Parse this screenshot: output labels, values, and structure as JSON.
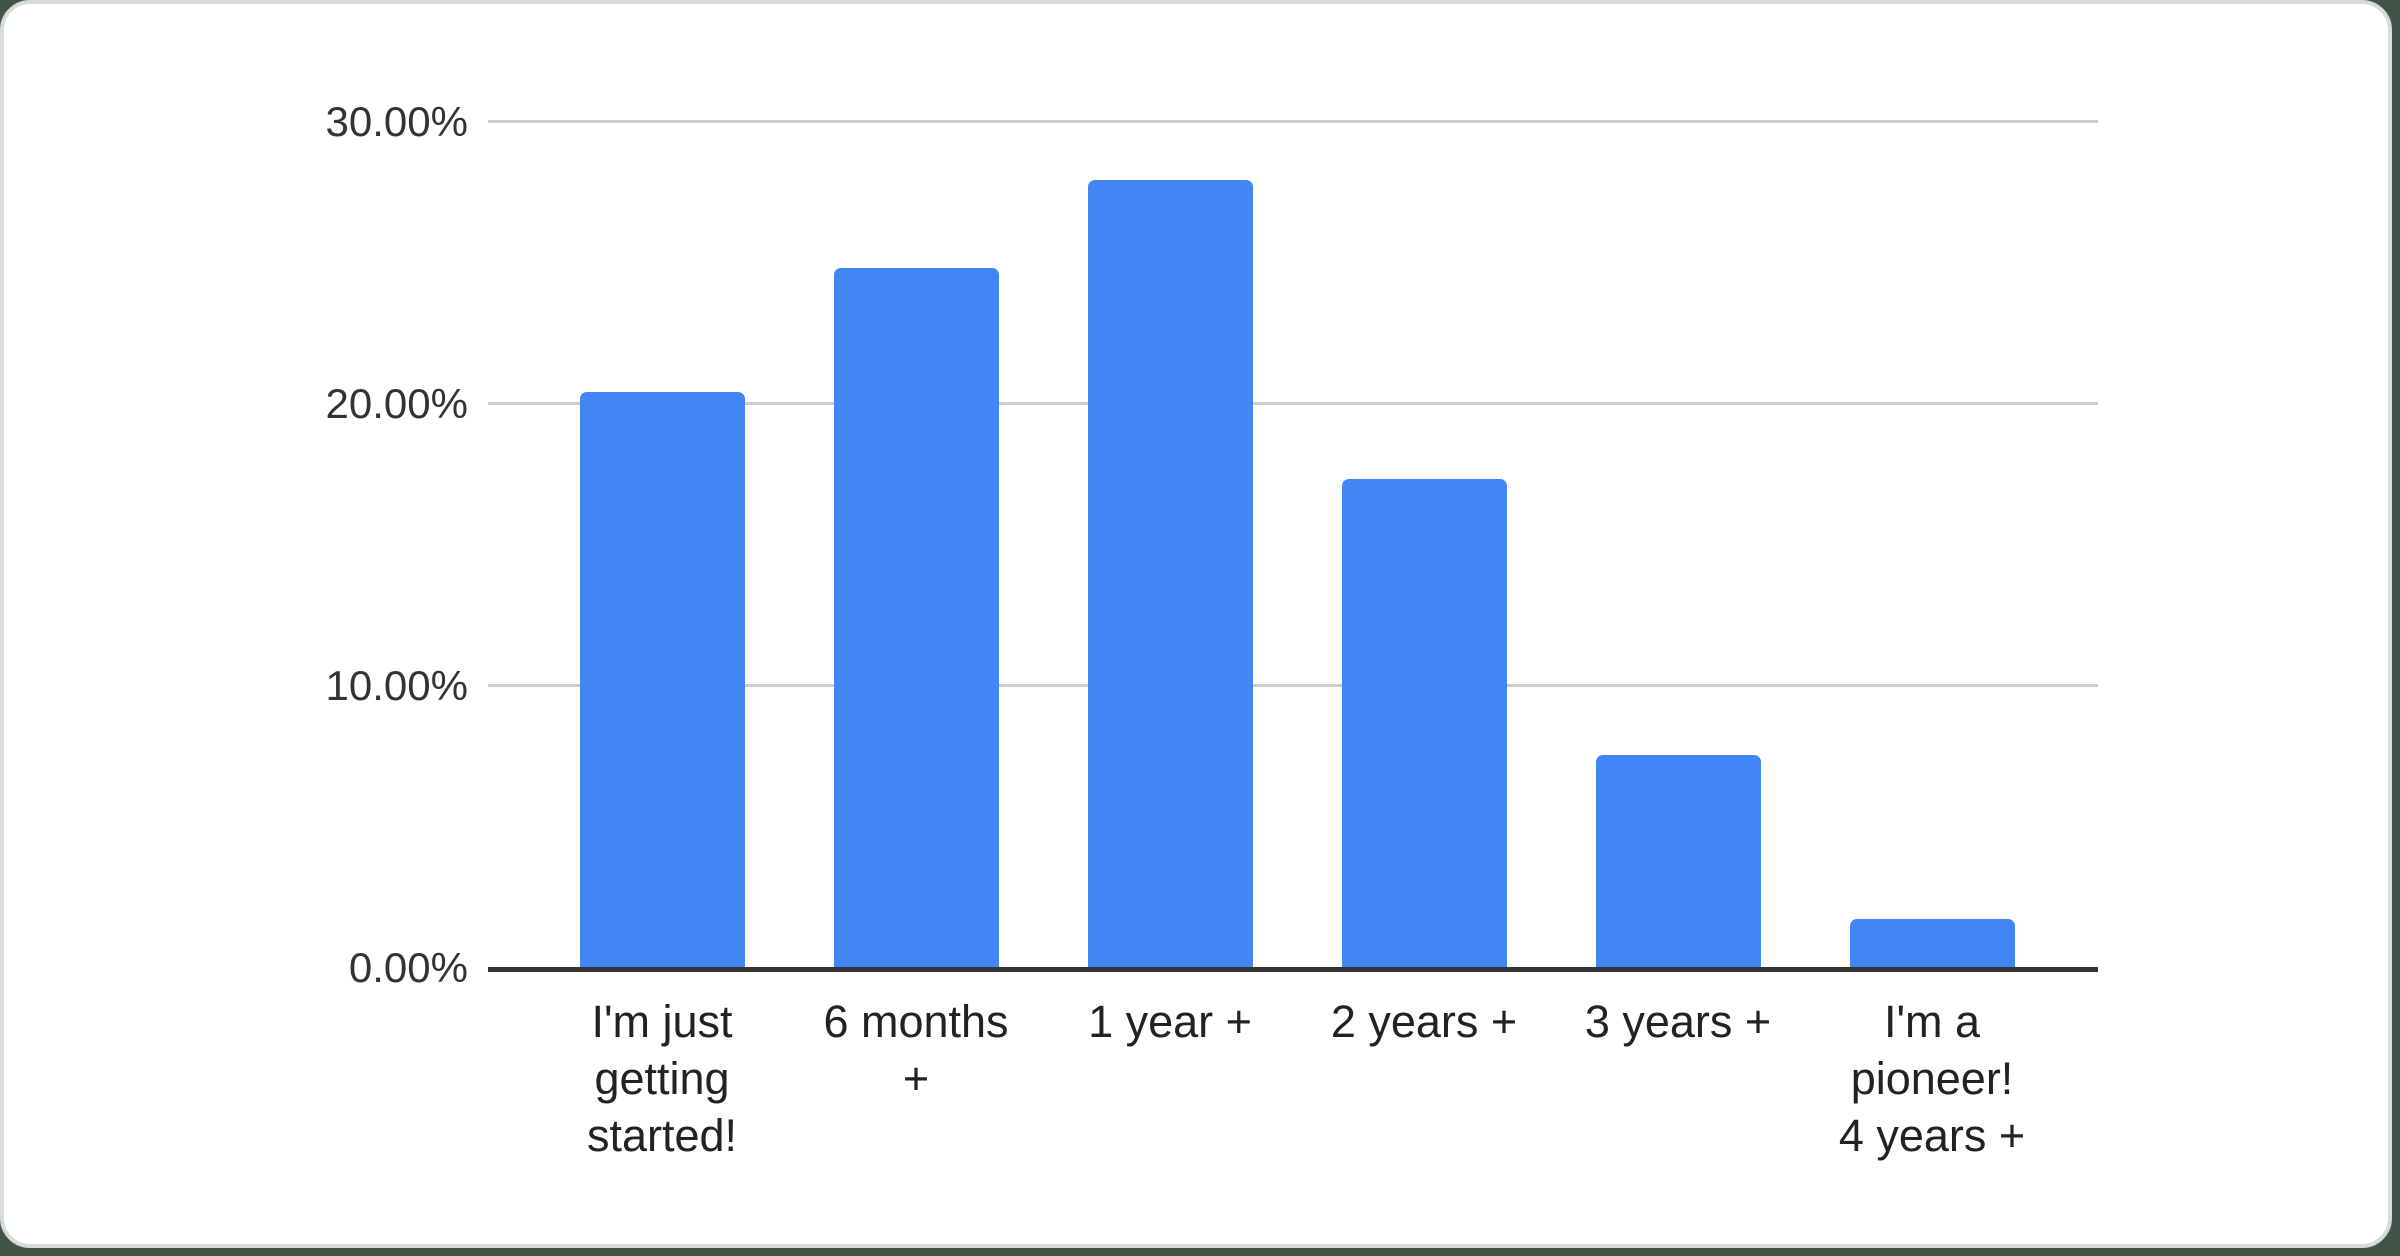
{
  "page": {
    "background_color": "#415449",
    "card_color": "#ffffff",
    "card_border_color": "#d7dade"
  },
  "chart_data": {
    "type": "bar",
    "title": "",
    "categories": [
      "I'm just getting started!",
      "6 months +",
      "1 year +",
      "2 years +",
      "3 years +",
      "I'm a pioneer! 4 years +"
    ],
    "values": [
      20.4,
      24.8,
      27.9,
      17.3,
      7.5,
      1.7
    ],
    "value_unit": "percent",
    "x_tick_label_lines": [
      "I'm just\ngetting\nstarted!",
      "6 months\n+",
      "1 year +",
      "2 years +",
      "3 years +",
      "I'm a\npioneer!\n4 years +"
    ],
    "y_ticks": [
      {
        "label": "0.00%",
        "value": 0
      },
      {
        "label": "10.00%",
        "value": 10
      },
      {
        "label": "20.00%",
        "value": 20
      },
      {
        "label": "30.00%",
        "value": 30
      }
    ],
    "ylim": [
      0,
      30
    ],
    "xlabel": "",
    "ylabel": "",
    "legend": "none",
    "grid": true,
    "bar_color": "#4285f4",
    "gridline_color": "#cccccc",
    "axis_line_color": "#333333",
    "y_label_color": "#333333",
    "x_label_color": "#222222"
  }
}
